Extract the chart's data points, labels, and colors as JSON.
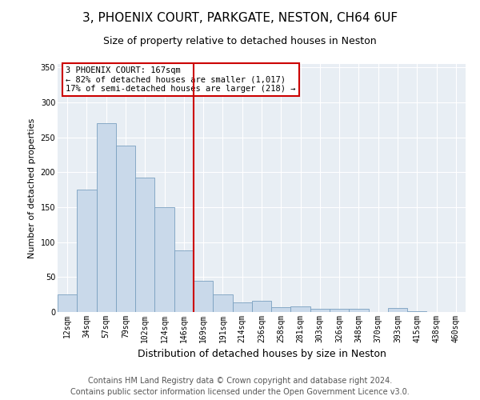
{
  "title": "3, PHOENIX COURT, PARKGATE, NESTON, CH64 6UF",
  "subtitle": "Size of property relative to detached houses in Neston",
  "xlabel": "Distribution of detached houses by size in Neston",
  "ylabel": "Number of detached properties",
  "bar_labels": [
    "12sqm",
    "34sqm",
    "57sqm",
    "79sqm",
    "102sqm",
    "124sqm",
    "146sqm",
    "169sqm",
    "191sqm",
    "214sqm",
    "236sqm",
    "258sqm",
    "281sqm",
    "303sqm",
    "326sqm",
    "348sqm",
    "370sqm",
    "393sqm",
    "415sqm",
    "438sqm",
    "460sqm"
  ],
  "bar_values": [
    25,
    175,
    270,
    238,
    192,
    150,
    88,
    45,
    25,
    14,
    16,
    7,
    8,
    5,
    5,
    5,
    0,
    6,
    1,
    0,
    0
  ],
  "bar_color": "#c9d9ea",
  "bar_edge_color": "#7aA0c0",
  "vline_index": 7,
  "vline_color": "#cc0000",
  "annotation_text": "3 PHOENIX COURT: 167sqm\n← 82% of detached houses are smaller (1,017)\n17% of semi-detached houses are larger (218) →",
  "annotation_box_color": "white",
  "annotation_box_edge_color": "#cc0000",
  "footer1": "Contains HM Land Registry data © Crown copyright and database right 2024.",
  "footer2": "Contains public sector information licensed under the Open Government Licence v3.0.",
  "ylim": [
    0,
    355
  ],
  "yticks": [
    0,
    50,
    100,
    150,
    200,
    250,
    300,
    350
  ],
  "bg_color": "#e8eef4",
  "grid_color": "white",
  "title_fontsize": 11,
  "subtitle_fontsize": 9,
  "ylabel_fontsize": 8,
  "xlabel_fontsize": 9,
  "tick_fontsize": 7,
  "footer_fontsize": 7,
  "annot_fontsize": 7.5
}
